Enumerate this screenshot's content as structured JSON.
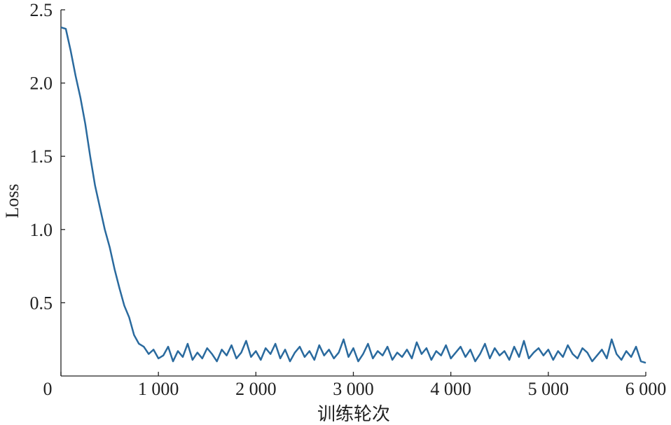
{
  "chart_data": {
    "type": "line",
    "xlabel": "训练轮次",
    "ylabel": "Loss",
    "xlim": [
      0,
      6000
    ],
    "ylim": [
      0,
      2.5
    ],
    "xticks": [
      0,
      {
        "value": 1000,
        "label": "1 000"
      },
      {
        "value": 2000,
        "label": "2 000"
      },
      {
        "value": 3000,
        "label": "3 000"
      },
      {
        "value": 4000,
        "label": "4 000"
      },
      {
        "value": 5000,
        "label": "5 000"
      },
      {
        "value": 6000,
        "label": "6 000"
      }
    ],
    "yticks": [
      0.5,
      {
        "value": 1,
        "label": "1.0"
      },
      1.5,
      {
        "value": 2,
        "label": "2.0"
      },
      2.5
    ],
    "x": [
      0,
      50,
      100,
      150,
      200,
      250,
      300,
      350,
      400,
      450,
      500,
      550,
      600,
      650,
      700,
      750,
      800,
      850,
      900,
      950,
      1000,
      1050,
      1100,
      1150,
      1200,
      1250,
      1300,
      1350,
      1400,
      1450,
      1500,
      1550,
      1600,
      1650,
      1700,
      1750,
      1800,
      1850,
      1900,
      1950,
      2000,
      2050,
      2100,
      2150,
      2200,
      2250,
      2300,
      2350,
      2400,
      2450,
      2500,
      2550,
      2600,
      2650,
      2700,
      2750,
      2800,
      2850,
      2900,
      2950,
      3000,
      3050,
      3100,
      3150,
      3200,
      3250,
      3300,
      3350,
      3400,
      3450,
      3500,
      3550,
      3600,
      3650,
      3700,
      3750,
      3800,
      3850,
      3900,
      3950,
      4000,
      4050,
      4100,
      4150,
      4200,
      4250,
      4300,
      4350,
      4400,
      4450,
      4500,
      4550,
      4600,
      4650,
      4700,
      4750,
      4800,
      4850,
      4900,
      4950,
      5000,
      5050,
      5100,
      5150,
      5200,
      5250,
      5300,
      5350,
      5400,
      5450,
      5500,
      5550,
      5600,
      5650,
      5700,
      5750,
      5800,
      5850,
      5900,
      5950,
      6000
    ],
    "series": [
      {
        "color": "#2a6a9e",
        "values": [
          2.38,
          2.37,
          2.22,
          2.05,
          1.9,
          1.72,
          1.5,
          1.3,
          1.15,
          1.0,
          0.88,
          0.73,
          0.6,
          0.48,
          0.4,
          0.28,
          0.22,
          0.2,
          0.15,
          0.18,
          0.12,
          0.14,
          0.2,
          0.1,
          0.17,
          0.13,
          0.22,
          0.11,
          0.16,
          0.12,
          0.19,
          0.15,
          0.1,
          0.18,
          0.14,
          0.21,
          0.12,
          0.16,
          0.24,
          0.13,
          0.17,
          0.11,
          0.19,
          0.15,
          0.22,
          0.12,
          0.18,
          0.1,
          0.16,
          0.2,
          0.13,
          0.17,
          0.11,
          0.21,
          0.14,
          0.18,
          0.12,
          0.16,
          0.25,
          0.13,
          0.19,
          0.1,
          0.15,
          0.22,
          0.12,
          0.17,
          0.14,
          0.2,
          0.11,
          0.16,
          0.13,
          0.18,
          0.12,
          0.23,
          0.15,
          0.19,
          0.11,
          0.17,
          0.14,
          0.21,
          0.12,
          0.16,
          0.2,
          0.13,
          0.18,
          0.1,
          0.15,
          0.22,
          0.12,
          0.19,
          0.14,
          0.17,
          0.11,
          0.2,
          0.13,
          0.24,
          0.12,
          0.16,
          0.19,
          0.14,
          0.18,
          0.11,
          0.17,
          0.13,
          0.21,
          0.15,
          0.12,
          0.19,
          0.16,
          0.1,
          0.14,
          0.18,
          0.12,
          0.25,
          0.15,
          0.11,
          0.17,
          0.13,
          0.2,
          0.1,
          0.09
        ]
      }
    ]
  }
}
